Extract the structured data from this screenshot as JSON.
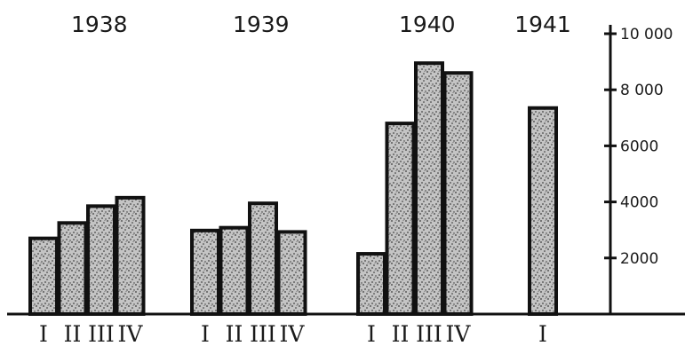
{
  "chart_data": {
    "type": "bar",
    "groups": [
      {
        "year": "1938",
        "quarters": [
          "I",
          "II",
          "III",
          "IV"
        ],
        "values": [
          2700,
          3250,
          3850,
          4150
        ]
      },
      {
        "year": "1939",
        "quarters": [
          "I",
          "II",
          "III",
          "IV"
        ],
        "values": [
          2980,
          3080,
          3950,
          2930
        ]
      },
      {
        "year": "1940",
        "quarters": [
          "I",
          "II",
          "III",
          "IV"
        ],
        "values": [
          2150,
          6800,
          8950,
          8600
        ]
      },
      {
        "year": "1941",
        "quarters": [
          "I"
        ],
        "values": [
          7350
        ]
      }
    ],
    "y_ticks": [
      {
        "value": 2000,
        "label": "2000"
      },
      {
        "value": 4000,
        "label": "4000"
      },
      {
        "value": 6000,
        "label": "6000"
      },
      {
        "value": 8000,
        "label": "8 000"
      },
      {
        "value": 10000,
        "label": "10 000"
      }
    ],
    "ylim": [
      0,
      10000
    ],
    "y_axis_side": "right",
    "grid": false,
    "colors": {
      "ink": "#111111",
      "bar_fill": "#b8b8b8",
      "background": "#ffffff"
    }
  }
}
